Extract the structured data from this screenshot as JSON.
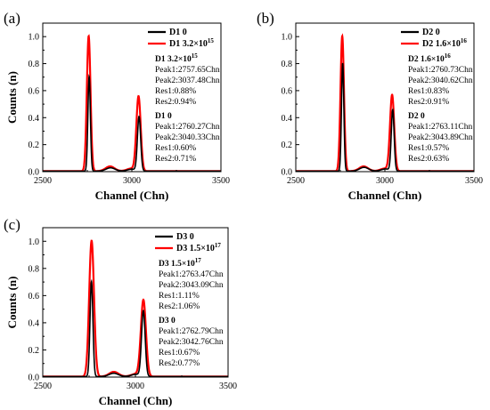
{
  "chart_data": [
    {
      "panel": "(a)",
      "type": "line",
      "xlabel": "Channel (Chn)",
      "ylabel": "Counts (n)",
      "xlim": [
        2500,
        3500
      ],
      "ylim": [
        0,
        1.1
      ],
      "xticks": [
        "2500",
        "3000",
        "3500"
      ],
      "yticks": [
        "0.0",
        "0.2",
        "0.4",
        "0.6",
        "0.8",
        "1.0"
      ],
      "legend_position": "top-right",
      "series": [
        {
          "name": "D1 0",
          "color": "#000000",
          "peaks": [
            {
              "center": 2760.27,
              "height": 0.7,
              "res": 0.6
            },
            {
              "center": 3040.33,
              "height": 0.4,
              "res": 0.71
            }
          ]
        },
        {
          "name": "D1 3.2×10",
          "name_sup": "15",
          "color": "#ff0000",
          "peaks": [
            {
              "center": 2757.65,
              "height": 1.0,
              "res": 0.88
            },
            {
              "center": 3037.48,
              "height": 0.55,
              "res": 0.94
            }
          ]
        }
      ],
      "annotations": [
        {
          "title": "D1 3.2×10",
          "title_sup": "15",
          "lines": [
            "Peak1:2757.65Chn",
            "Peak2:3037.48Chn",
            "Res1:0.88%",
            "Res2:0.94%"
          ]
        },
        {
          "title": "D1 0",
          "title_sup": "",
          "lines": [
            "Peak1:2760.27Chn",
            "Peak2:3040.33Chn",
            "Res1:0.60%",
            "Res2:0.71%"
          ]
        }
      ]
    },
    {
      "panel": "(b)",
      "type": "line",
      "xlabel": "Channel (Chn)",
      "ylabel": "",
      "xlim": [
        2500,
        3500
      ],
      "ylim": [
        0,
        1.1
      ],
      "xticks": [
        "2500",
        "3000",
        "3500"
      ],
      "yticks": [
        "0.0",
        "0.2",
        "0.4",
        "0.6",
        "0.8",
        "1.0"
      ],
      "legend_position": "top-right",
      "series": [
        {
          "name": "D2 0",
          "color": "#000000",
          "peaks": [
            {
              "center": 2763.11,
              "height": 0.8,
              "res": 0.57
            },
            {
              "center": 3043.89,
              "height": 0.45,
              "res": 0.63
            }
          ]
        },
        {
          "name": "D2 1.6×10",
          "name_sup": "16",
          "color": "#ff0000",
          "peaks": [
            {
              "center": 2760.73,
              "height": 1.0,
              "res": 0.83
            },
            {
              "center": 3040.62,
              "height": 0.56,
              "res": 0.91
            }
          ]
        }
      ],
      "annotations": [
        {
          "title": "D2 1.6×10",
          "title_sup": "16",
          "lines": [
            "Peak1:2760.73Chn",
            "Peak2:3040.62Chn",
            "Res1:0.83%",
            "Res2:0.91%"
          ]
        },
        {
          "title": "D2 0",
          "title_sup": "",
          "lines": [
            "Peak1:2763.11Chn",
            "Peak2:3043.89Chn",
            "Res1:0.57%",
            "Res2:0.63%"
          ]
        }
      ]
    },
    {
      "panel": "(c)",
      "type": "line",
      "xlabel": "Channel (Chn)",
      "ylabel": "Counts (n)",
      "xlim": [
        2500,
        3500
      ],
      "ylim": [
        0,
        1.1
      ],
      "xticks": [
        "2500",
        "3000",
        "3500"
      ],
      "yticks": [
        "0.0",
        "0.2",
        "0.4",
        "0.6",
        "0.8",
        "1.0"
      ],
      "legend_position": "top-right",
      "series": [
        {
          "name": "D3 0",
          "color": "#000000",
          "peaks": [
            {
              "center": 2762.79,
              "height": 0.7,
              "res": 0.67
            },
            {
              "center": 3042.76,
              "height": 0.48,
              "res": 0.77
            }
          ]
        },
        {
          "name": "D3 1.5×10",
          "name_sup": "17",
          "color": "#ff0000",
          "peaks": [
            {
              "center": 2763.47,
              "height": 1.0,
              "res": 1.11
            },
            {
              "center": 3043.09,
              "height": 0.56,
              "res": 1.06
            }
          ]
        }
      ],
      "annotations": [
        {
          "title": "D3 1.5×10",
          "title_sup": "17",
          "lines": [
            "Peak1:2763.47Chn",
            "Peak2:3043.09Chn",
            "Res1:1.11%",
            "Res2:1.06%"
          ]
        },
        {
          "title": "D3 0",
          "title_sup": "",
          "lines": [
            "Peak1:2762.79Chn",
            "Peak2:3042.76Chn",
            "Res1:0.67%",
            "Res2:0.77%"
          ]
        }
      ]
    }
  ]
}
